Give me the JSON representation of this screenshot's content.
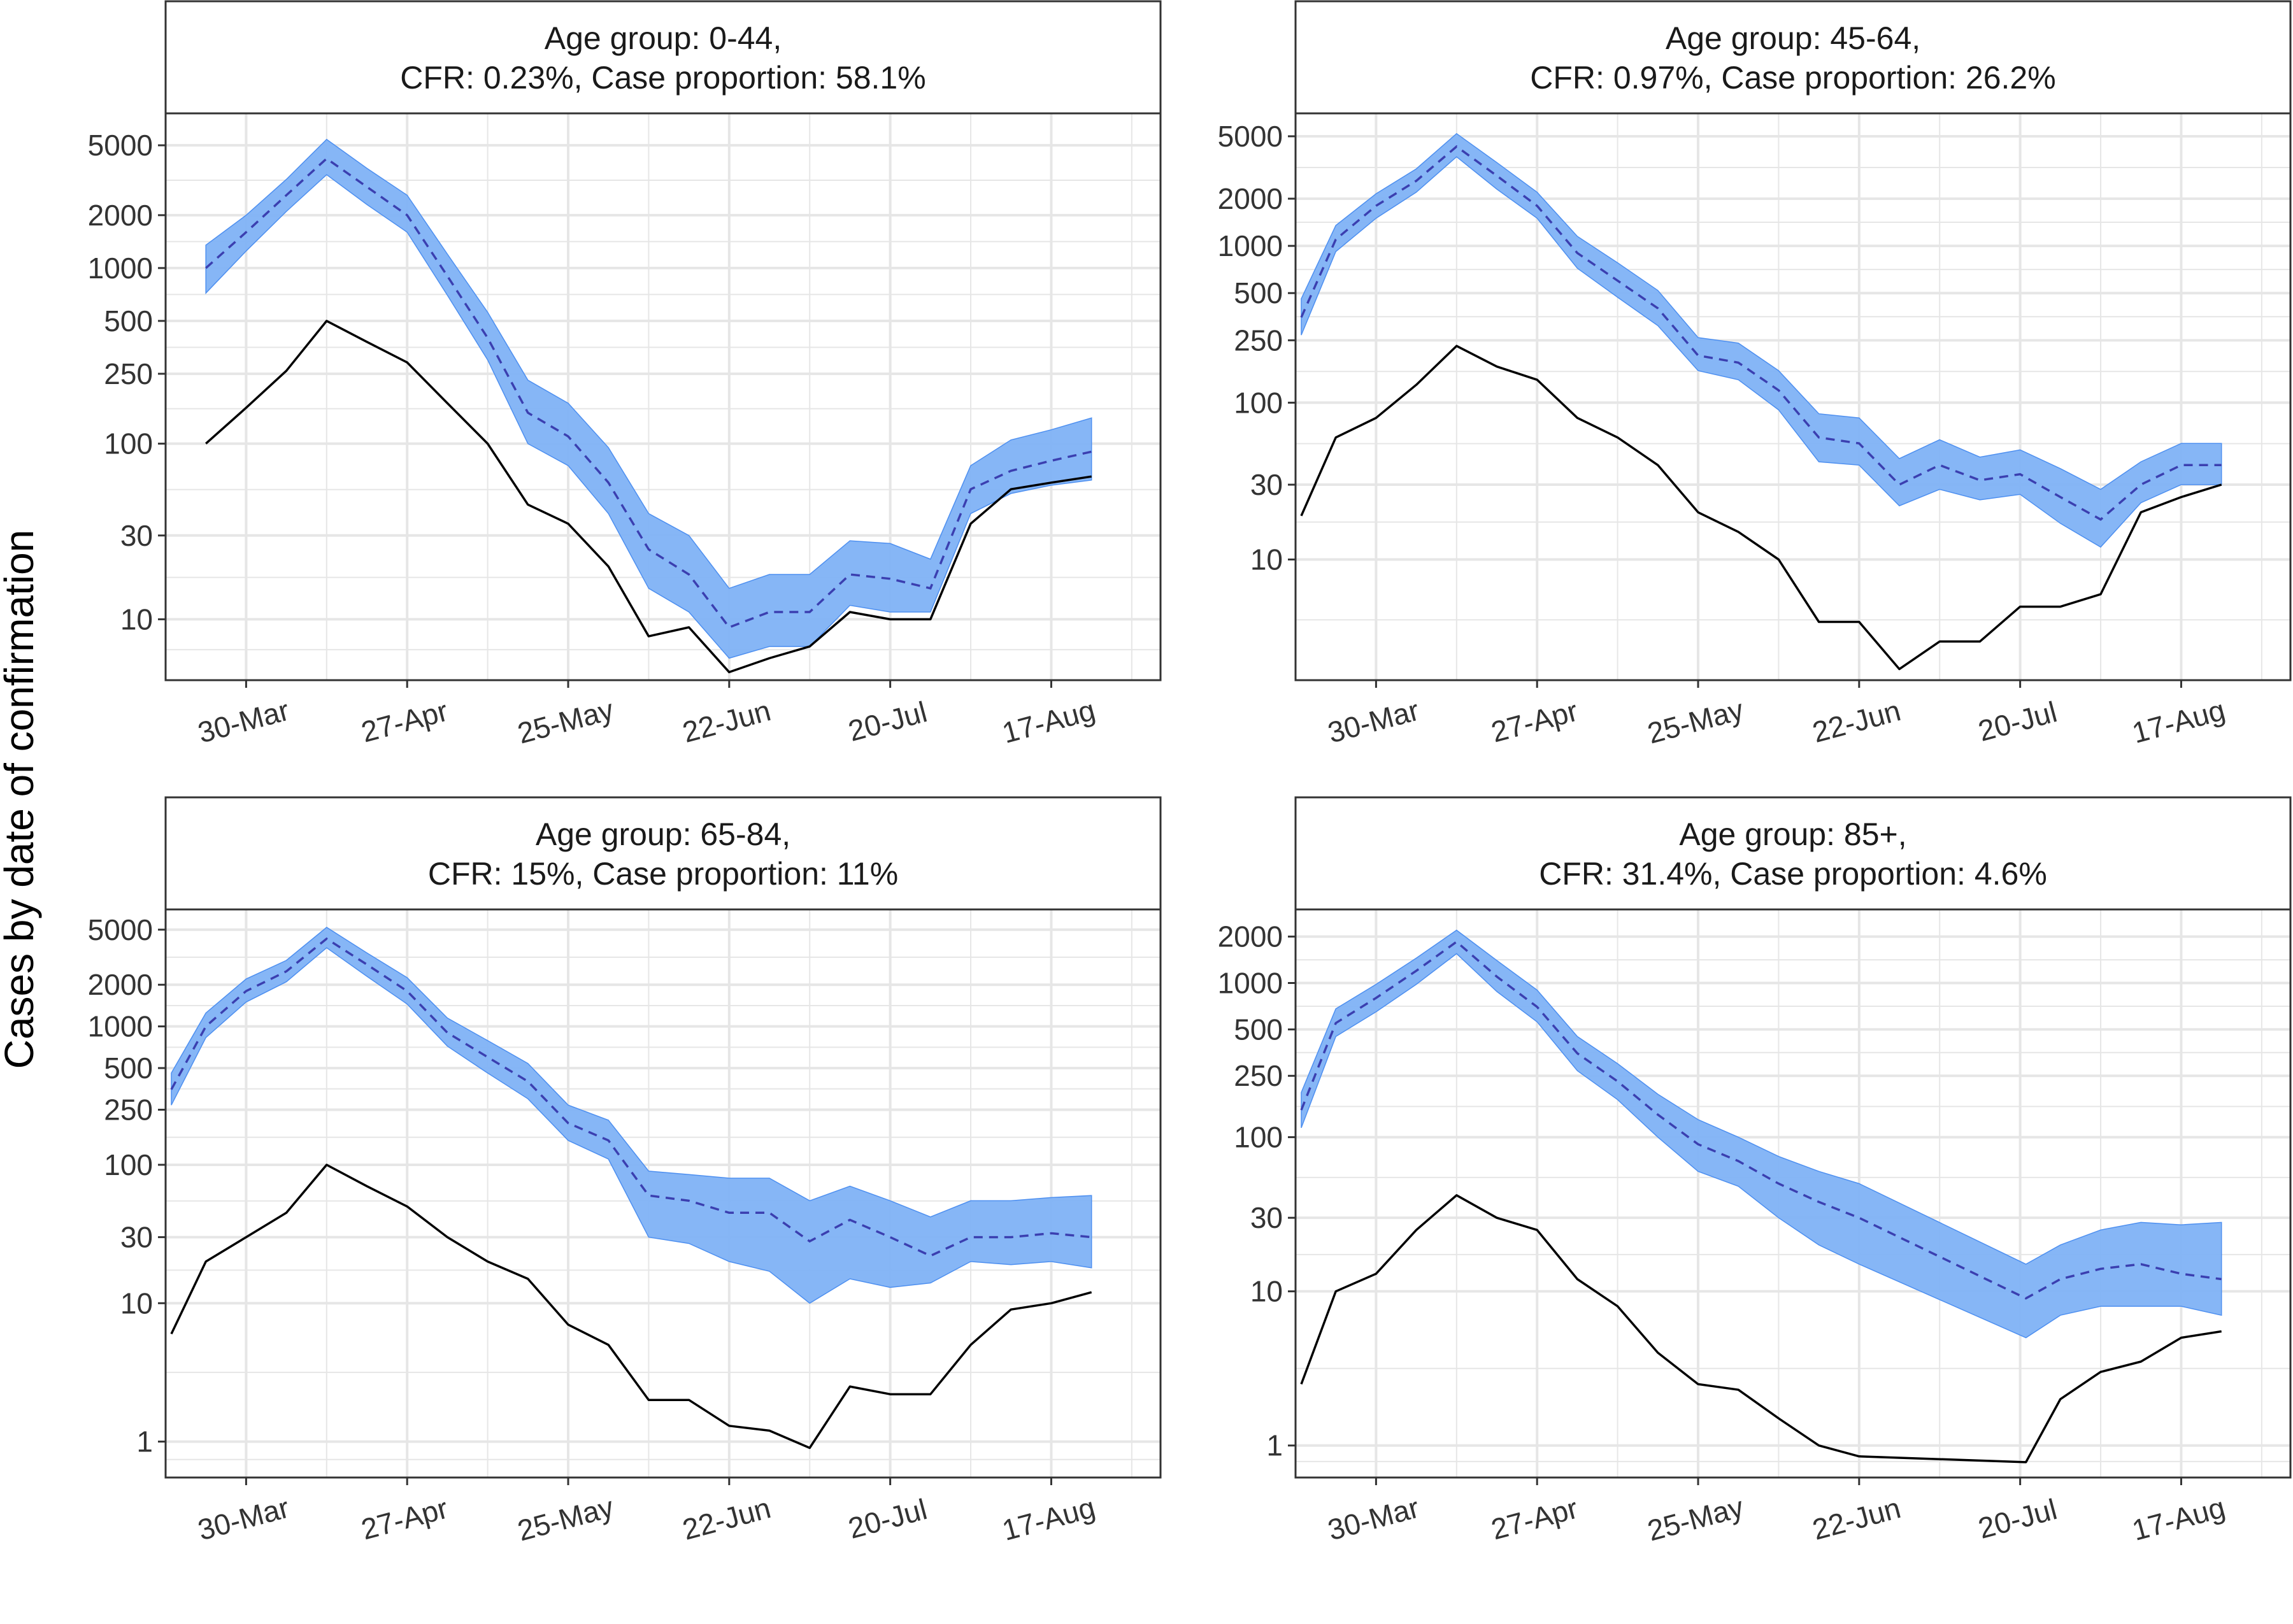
{
  "ylabel": "Cases by date of confirmation",
  "colors": {
    "band": "#7fb2f5",
    "band_edge": "#4d8ff0",
    "median": "#3b3fb0",
    "observed": "#000000",
    "grid": "#e6e6e6",
    "strip_bg": "#ffffff",
    "panel_border": "#333333"
  },
  "chart_data": [
    {
      "type": "line",
      "title_lines": [
        "Age group: 0-44,",
        "CFR: 0.23%, Case proportion: 58.1%"
      ],
      "x_tick_labels": [
        "30-Mar",
        "27-Apr",
        "25-May",
        "22-Jun",
        "20-Jul",
        "17-Aug"
      ],
      "x_tick_days": [
        0,
        28,
        56,
        84,
        112,
        140
      ],
      "x_range_days": [
        -14,
        159
      ],
      "y_scale": "log",
      "y_range": [
        4.5,
        7600
      ],
      "y_ticks": [
        10,
        30,
        100,
        250,
        500,
        1000,
        2000,
        5000
      ],
      "y_tick_labels": [
        "10",
        "30",
        "100",
        "250",
        "500",
        "1000",
        "2000",
        "5000"
      ],
      "series": [
        {
          "role": "observed",
          "x": [
            -7,
            0,
            7,
            14,
            21,
            28,
            35,
            42,
            49,
            56,
            63,
            70,
            77,
            84,
            91,
            98,
            105,
            112,
            119,
            126,
            133,
            140,
            147
          ],
          "values": [
            100,
            160,
            260,
            500,
            380,
            290,
            170,
            100,
            45,
            35,
            20,
            8,
            9,
            5,
            6,
            7,
            11,
            10,
            10,
            35,
            55,
            60,
            65
          ]
        },
        {
          "role": "estimate_median",
          "x": [
            -7,
            0,
            7,
            14,
            21,
            28,
            35,
            42,
            49,
            56,
            63,
            70,
            77,
            84,
            91,
            98,
            105,
            112,
            119,
            126,
            133,
            140,
            147
          ],
          "values": [
            1000,
            1600,
            2600,
            4200,
            2900,
            2000,
            900,
            400,
            150,
            110,
            60,
            25,
            18,
            9,
            11,
            11,
            18,
            17,
            15,
            55,
            70,
            80,
            90
          ]
        },
        {
          "role": "estimate_lower",
          "x": [
            -7,
            0,
            7,
            14,
            21,
            28,
            35,
            42,
            49,
            56,
            63,
            70,
            77,
            84,
            91,
            98,
            105,
            112,
            119,
            126,
            133,
            140,
            147
          ],
          "values": [
            720,
            1250,
            2100,
            3400,
            2300,
            1600,
            700,
            300,
            100,
            75,
            40,
            15,
            11,
            6,
            7,
            7,
            12,
            11,
            11,
            40,
            52,
            58,
            62
          ]
        },
        {
          "role": "estimate_upper",
          "x": [
            -7,
            0,
            7,
            14,
            21,
            28,
            35,
            42,
            49,
            56,
            63,
            70,
            77,
            84,
            91,
            98,
            105,
            112,
            119,
            126,
            133,
            140,
            147
          ],
          "values": [
            1350,
            2000,
            3200,
            5400,
            3700,
            2600,
            1200,
            560,
            230,
            170,
            95,
            40,
            30,
            15,
            18,
            18,
            28,
            27,
            22,
            75,
            105,
            120,
            140
          ]
        }
      ]
    },
    {
      "type": "line",
      "title_lines": [
        "Age group: 45-64,",
        "CFR: 0.97%, Case proportion: 26.2%"
      ],
      "x_tick_labels": [
        "30-Mar",
        "27-Apr",
        "25-May",
        "22-Jun",
        "20-Jul",
        "17-Aug"
      ],
      "x_tick_days": [
        0,
        28,
        56,
        84,
        112,
        140
      ],
      "x_range_days": [
        -14,
        159
      ],
      "y_scale": "log",
      "y_range": [
        1.7,
        7000
      ],
      "y_ticks": [
        10,
        30,
        100,
        250,
        500,
        1000,
        2000,
        5000
      ],
      "y_tick_labels": [
        "10",
        "30",
        "100",
        "250",
        "500",
        "1000",
        "2000",
        "5000"
      ],
      "series": [
        {
          "role": "observed",
          "x": [
            -13,
            -7,
            0,
            7,
            14,
            21,
            28,
            35,
            42,
            49,
            56,
            63,
            70,
            77,
            84,
            91,
            98,
            105,
            112,
            119,
            126,
            133,
            140,
            147
          ],
          "values": [
            19,
            60,
            80,
            130,
            230,
            170,
            140,
            80,
            60,
            40,
            20,
            15,
            10,
            4,
            4,
            2,
            3,
            3,
            5,
            5,
            6,
            20,
            25,
            30
          ]
        },
        {
          "role": "estimate_median",
          "x": [
            -13,
            -7,
            0,
            7,
            14,
            21,
            28,
            35,
            42,
            49,
            56,
            63,
            70,
            77,
            84,
            91,
            98,
            105,
            112,
            119,
            126,
            133,
            140,
            147
          ],
          "values": [
            350,
            1100,
            1800,
            2600,
            4300,
            2800,
            1800,
            900,
            600,
            400,
            200,
            180,
            120,
            60,
            55,
            30,
            40,
            32,
            35,
            25,
            18,
            30,
            40,
            40
          ]
        },
        {
          "role": "estimate_lower",
          "x": [
            -13,
            -7,
            0,
            7,
            14,
            21,
            28,
            35,
            42,
            49,
            56,
            63,
            70,
            77,
            84,
            91,
            98,
            105,
            112,
            119,
            126,
            133,
            140,
            147
          ],
          "values": [
            270,
            920,
            1500,
            2200,
            3700,
            2300,
            1500,
            720,
            470,
            310,
            160,
            140,
            90,
            42,
            40,
            22,
            28,
            24,
            26,
            17,
            12,
            23,
            30,
            30
          ]
        },
        {
          "role": "estimate_upper",
          "x": [
            -13,
            -7,
            0,
            7,
            14,
            21,
            28,
            35,
            42,
            49,
            56,
            63,
            70,
            77,
            84,
            91,
            98,
            105,
            112,
            119,
            126,
            133,
            140,
            147
          ],
          "values": [
            460,
            1350,
            2150,
            3100,
            5200,
            3400,
            2200,
            1150,
            780,
            520,
            260,
            240,
            160,
            85,
            80,
            44,
            58,
            45,
            50,
            38,
            28,
            42,
            55,
            55
          ]
        }
      ]
    },
    {
      "type": "line",
      "title_lines": [
        "Age group: 65-84,",
        "CFR: 15%, Case proportion: 11%"
      ],
      "x_tick_labels": [
        "30-Mar",
        "27-Apr",
        "25-May",
        "22-Jun",
        "20-Jul",
        "17-Aug"
      ],
      "x_tick_days": [
        0,
        28,
        56,
        84,
        112,
        140
      ],
      "x_range_days": [
        -14,
        159
      ],
      "y_scale": "log",
      "y_range": [
        0.55,
        7000
      ],
      "y_ticks": [
        1,
        10,
        30,
        100,
        250,
        500,
        1000,
        2000,
        5000
      ],
      "y_tick_labels": [
        "1",
        "10",
        "30",
        "100",
        "250",
        "500",
        "1000",
        "2000",
        "5000"
      ],
      "series": [
        {
          "role": "observed",
          "x": [
            -13,
            -7,
            0,
            7,
            14,
            21,
            28,
            35,
            42,
            49,
            56,
            63,
            70,
            77,
            84,
            91,
            98,
            105,
            112,
            119,
            126,
            133,
            140,
            147
          ],
          "values": [
            6,
            20,
            30,
            45,
            100,
            70,
            50,
            30,
            20,
            15,
            7,
            5,
            2,
            2,
            1.3,
            1.2,
            0.9,
            2.5,
            2.2,
            2.2,
            5,
            9,
            10,
            12
          ]
        },
        {
          "role": "estimate_median",
          "x": [
            -13,
            -7,
            0,
            7,
            14,
            21,
            28,
            35,
            42,
            49,
            56,
            63,
            70,
            77,
            84,
            91,
            98,
            105,
            112,
            119,
            126,
            133,
            140,
            147
          ],
          "values": [
            350,
            1000,
            1800,
            2500,
            4300,
            2800,
            1800,
            900,
            600,
            400,
            200,
            150,
            60,
            55,
            45,
            45,
            28,
            40,
            30,
            22,
            30,
            30,
            32,
            30
          ]
        },
        {
          "role": "estimate_lower",
          "x": [
            -13,
            -7,
            0,
            7,
            14,
            21,
            28,
            35,
            42,
            49,
            56,
            63,
            70,
            77,
            84,
            91,
            98,
            105,
            112,
            119,
            126,
            133,
            140,
            147
          ],
          "values": [
            270,
            830,
            1500,
            2100,
            3700,
            2300,
            1450,
            720,
            460,
            300,
            150,
            110,
            30,
            27,
            20,
            17,
            10,
            15,
            13,
            14,
            20,
            19,
            20,
            18
          ]
        },
        {
          "role": "estimate_upper",
          "x": [
            -13,
            -7,
            0,
            7,
            14,
            21,
            28,
            35,
            42,
            49,
            56,
            63,
            70,
            77,
            84,
            91,
            98,
            105,
            112,
            119,
            126,
            133,
            140,
            147
          ],
          "values": [
            460,
            1250,
            2200,
            3000,
            5200,
            3400,
            2250,
            1150,
            790,
            540,
            270,
            210,
            90,
            85,
            80,
            80,
            55,
            70,
            55,
            42,
            55,
            55,
            58,
            60
          ]
        }
      ]
    },
    {
      "type": "line",
      "title_lines": [
        "Age group: 85+,",
        "CFR: 31.4%, Case proportion: 4.6%"
      ],
      "x_tick_labels": [
        "30-Mar",
        "27-Apr",
        "25-May",
        "22-Jun",
        "20-Jul",
        "17-Aug"
      ],
      "x_tick_days": [
        0,
        28,
        56,
        84,
        112,
        140
      ],
      "x_range_days": [
        -14,
        159
      ],
      "y_scale": "log",
      "y_range": [
        0.62,
        3000
      ],
      "y_ticks": [
        1,
        10,
        30,
        100,
        250,
        500,
        1000,
        2000
      ],
      "y_tick_labels": [
        "1",
        "10",
        "30",
        "100",
        "250",
        "500",
        "1000",
        "2000"
      ],
      "series": [
        {
          "role": "observed",
          "x": [
            -13,
            -7,
            0,
            7,
            14,
            21,
            28,
            35,
            42,
            49,
            56,
            63,
            70,
            77,
            84,
            113,
            119,
            126,
            133,
            140,
            147
          ],
          "values": [
            2.5,
            10,
            13,
            25,
            42,
            30,
            25,
            12,
            8,
            4,
            2.5,
            2.3,
            1.5,
            1,
            0.85,
            0.78,
            2,
            3,
            3.5,
            5,
            5.5
          ]
        },
        {
          "role": "estimate_median",
          "x": [
            -13,
            -7,
            0,
            7,
            14,
            21,
            28,
            35,
            42,
            49,
            56,
            63,
            70,
            77,
            84,
            113,
            119,
            126,
            133,
            140,
            147
          ],
          "values": [
            150,
            550,
            800,
            1200,
            1850,
            1100,
            700,
            350,
            230,
            140,
            90,
            70,
            50,
            38,
            30,
            9,
            12,
            14,
            15,
            13,
            12
          ]
        },
        {
          "role": "estimate_lower",
          "x": [
            -13,
            -7,
            0,
            7,
            14,
            21,
            28,
            35,
            42,
            49,
            56,
            63,
            70,
            77,
            84,
            113,
            119,
            126,
            133,
            140,
            147
          ],
          "values": [
            115,
            450,
            650,
            980,
            1550,
            880,
            560,
            270,
            175,
            100,
            60,
            48,
            30,
            20,
            15,
            5,
            7,
            8,
            8,
            8,
            7
          ]
        },
        {
          "role": "estimate_upper",
          "x": [
            -13,
            -7,
            0,
            7,
            14,
            21,
            28,
            35,
            42,
            49,
            56,
            63,
            70,
            77,
            84,
            113,
            119,
            126,
            133,
            140,
            147
          ],
          "values": [
            195,
            680,
            980,
            1450,
            2200,
            1400,
            900,
            450,
            300,
            190,
            130,
            100,
            75,
            60,
            50,
            15,
            20,
            25,
            28,
            27,
            28
          ]
        }
      ]
    }
  ]
}
